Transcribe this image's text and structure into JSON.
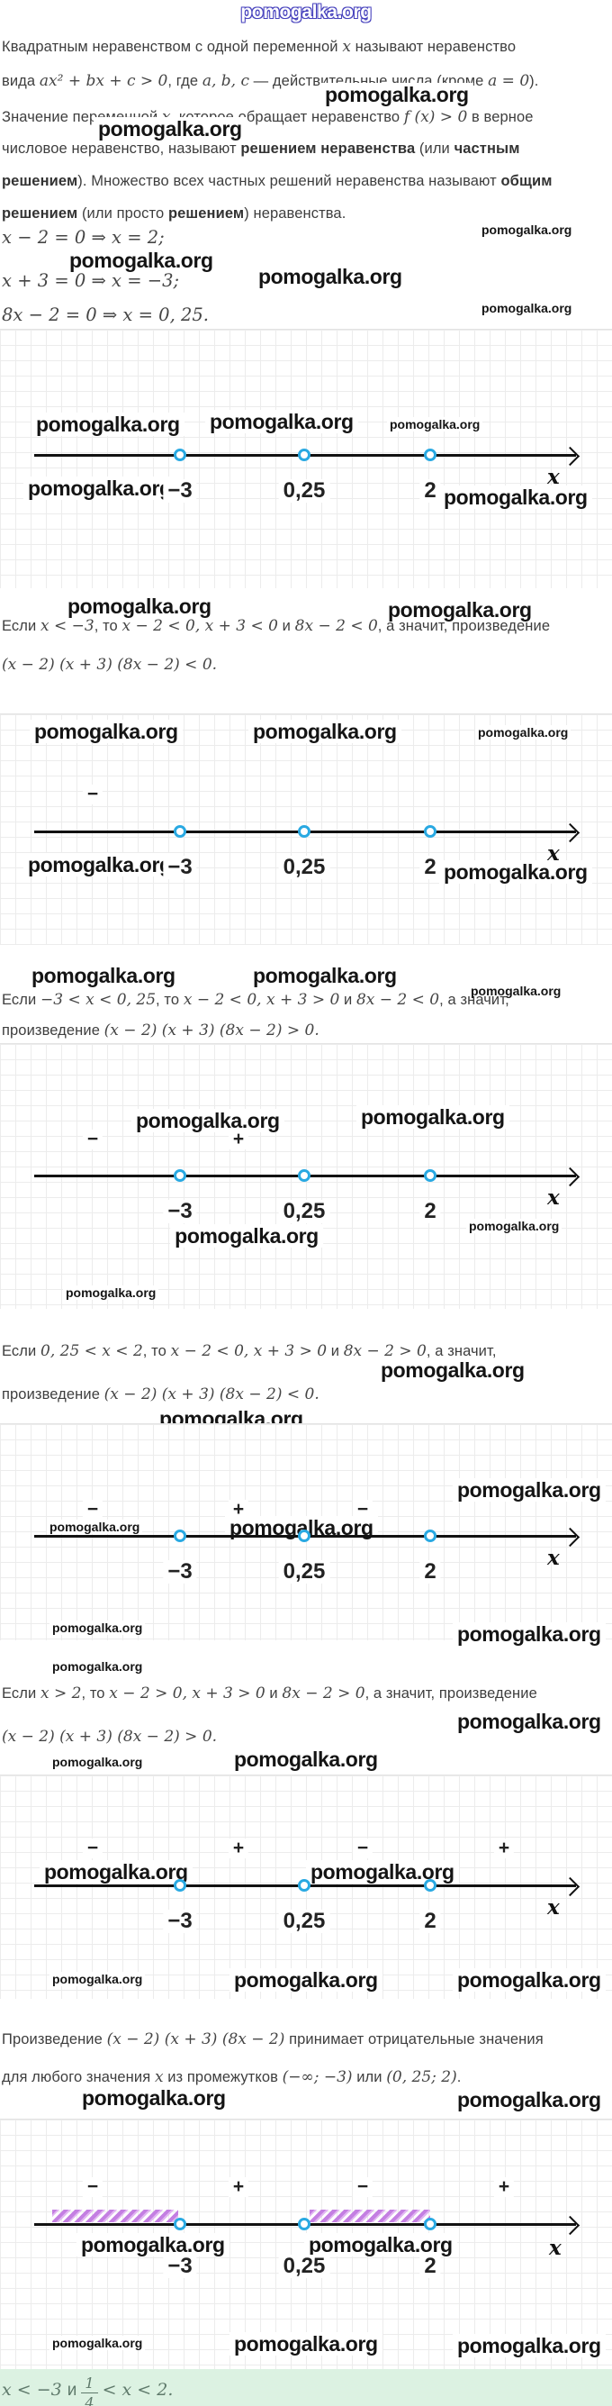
{
  "watermark": "pomogalka.org",
  "colors": {
    "point_stroke": "#29a9e2",
    "hatch": "#c47fe2",
    "answer_bg": "#dcf2e2",
    "watermark_outline": "#4742bd",
    "axis": "#121212"
  },
  "intro": {
    "lines": [
      [
        {
          "t": "Квадратным неравенством с одной переменной "
        },
        {
          "t": "x",
          "s": "m"
        },
        {
          "t": " называют неравенство"
        }
      ],
      [
        {
          "t": "вида "
        },
        {
          "t": "ax² + bx + c > 0",
          "s": "m"
        },
        {
          "t": ", где "
        },
        {
          "t": "a,  b,  c",
          "s": "m"
        },
        {
          "t": " — действительные числа (кроме "
        },
        {
          "t": "a = 0",
          "s": "m"
        },
        {
          "t": ")."
        }
      ],
      [
        {
          "t": "Значение переменной "
        },
        {
          "t": "x",
          "s": "m"
        },
        {
          "t": ", которое обращает неравенство "
        },
        {
          "t": "f (x) > 0",
          "s": "m"
        },
        {
          "t": " в верное"
        }
      ],
      [
        {
          "t": "числовое неравенство, называют "
        },
        {
          "t": "решением неравенства",
          "s": "b"
        },
        {
          "t": " (или "
        },
        {
          "t": "частным",
          "s": "b"
        }
      ],
      [
        {
          "t": "решением",
          "s": "b"
        },
        {
          "t": "). Множество всех частных решений неравенства называют "
        },
        {
          "t": "общим",
          "s": "b"
        }
      ],
      [
        {
          "t": "решением",
          "s": "b"
        },
        {
          "t": " (или просто "
        },
        {
          "t": "решением",
          "s": "b"
        },
        {
          "t": ") неравенства."
        }
      ]
    ]
  },
  "equations": [
    [
      {
        "t": "x − 2 = 0 ⇒ x = 2;",
        "s": "m"
      }
    ],
    [
      {
        "t": "x + 3 = 0 ⇒ x = −3;",
        "s": "m"
      }
    ],
    [
      {
        "t": "8x − 2 = 0 ⇒ x = 0, 25.",
        "s": "m"
      }
    ]
  ],
  "steps": {
    "s2": {
      "l1": [
        {
          "t": "Если "
        },
        {
          "t": "x < −3",
          "s": "m"
        },
        {
          "t": ", то "
        },
        {
          "t": "x − 2 < 0, x + 3 < 0",
          "s": "m"
        },
        {
          "t": " и "
        },
        {
          "t": "8x − 2 < 0",
          "s": "m"
        },
        {
          "t": ", а значит, произведение"
        }
      ],
      "l2": [
        {
          "t": "(x − 2) (x + 3) (8x − 2) < 0.",
          "s": "m"
        }
      ]
    },
    "s3": {
      "l1": [
        {
          "t": "Если "
        },
        {
          "t": "−3 < x < 0, 25",
          "s": "m"
        },
        {
          "t": ", то "
        },
        {
          "t": "x − 2 < 0, x + 3 > 0",
          "s": "m"
        },
        {
          "t": " и "
        },
        {
          "t": "8x − 2 < 0",
          "s": "m"
        },
        {
          "t": ", а значит,"
        }
      ],
      "l2": [
        {
          "t": "произведение "
        },
        {
          "t": "(x − 2) (x + 3) (8x − 2) > 0.",
          "s": "m"
        }
      ]
    },
    "s4": {
      "l1": [
        {
          "t": "Если "
        },
        {
          "t": "0, 25 < x < 2",
          "s": "m"
        },
        {
          "t": ", то "
        },
        {
          "t": "x − 2 < 0, x + 3 > 0",
          "s": "m"
        },
        {
          "t": " и "
        },
        {
          "t": "8x − 2 > 0",
          "s": "m"
        },
        {
          "t": ", а значит,"
        }
      ],
      "l2": [
        {
          "t": "произведение "
        },
        {
          "t": "(x − 2) (x + 3) (8x − 2) < 0.",
          "s": "m"
        }
      ]
    },
    "s5": {
      "l1": [
        {
          "t": "Если "
        },
        {
          "t": "x > 2",
          "s": "m"
        },
        {
          "t": ", то "
        },
        {
          "t": "x − 2 > 0, x + 3 > 0",
          "s": "m"
        },
        {
          "t": " и "
        },
        {
          "t": "8x − 2 > 0",
          "s": "m"
        },
        {
          "t": ", а значит, произведение"
        }
      ],
      "l2": [
        {
          "t": "(x − 2) (x + 3) (8x − 2) > 0.",
          "s": "m"
        }
      ]
    },
    "s6": {
      "l1": [
        {
          "t": "Произведение "
        },
        {
          "t": "(x − 2) (x + 3) (8x − 2)",
          "s": "m"
        },
        {
          "t": " принимает отрицательные значения"
        }
      ],
      "l2": [
        {
          "t": "для любого значения "
        },
        {
          "t": "x",
          "s": "m"
        },
        {
          "t": " из промежутков "
        },
        {
          "t": "(−∞;  −3)",
          "s": "m"
        },
        {
          "t": " или "
        },
        {
          "t": "(0, 25;  2)",
          "s": "m"
        },
        {
          "t": "."
        }
      ]
    }
  },
  "number_lines": [
    {
      "points": [
        "−3",
        "0,25",
        "2"
      ],
      "axis_label": "x",
      "signs": []
    },
    {
      "points": [
        "−3",
        "0,25",
        "2"
      ],
      "axis_label": "x",
      "signs": [
        "−"
      ]
    },
    {
      "points": [
        "−3",
        "0,25",
        "2"
      ],
      "axis_label": "x",
      "signs": [
        "−",
        "+"
      ]
    },
    {
      "points": [
        "−3",
        "0,25",
        "2"
      ],
      "axis_label": "x",
      "signs": [
        "−",
        "+",
        "−"
      ]
    },
    {
      "points": [
        "−3",
        "0,25",
        "2"
      ],
      "axis_label": "x",
      "signs": [
        "−",
        "+",
        "−",
        "+"
      ]
    },
    {
      "points": [
        "−3",
        "0,25",
        "2"
      ],
      "axis_label": "x",
      "signs": [
        "−",
        "+",
        "−",
        "+"
      ],
      "hatched_intervals": [
        "(−∞; −3)",
        "(0,25; 2)"
      ]
    }
  ],
  "answer": {
    "pre": [
      {
        "t": "x < −3 ",
        "s": "m"
      },
      {
        "t": "и",
        "s": ""
      }
    ],
    "num": "1",
    "den": "4",
    "post": [
      {
        "t": " < x < 2.",
        "s": "m"
      }
    ]
  }
}
